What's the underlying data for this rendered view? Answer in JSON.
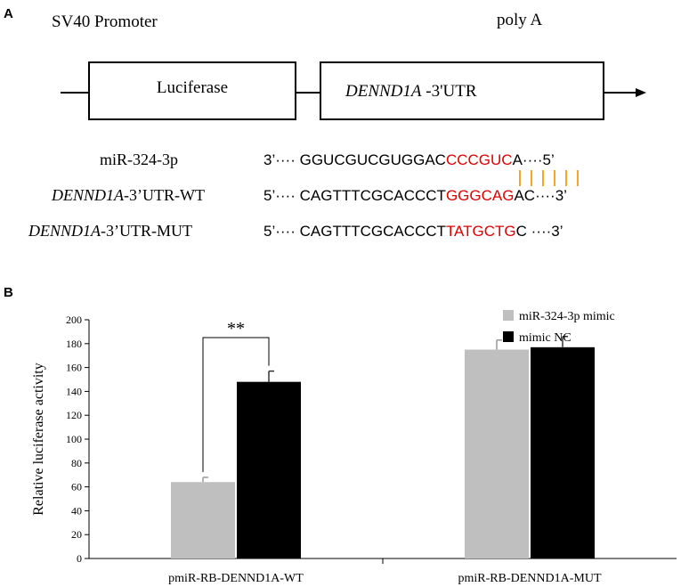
{
  "panel_a": {
    "label": "A",
    "promoter_label": "SV40 Promoter",
    "polya_label": "poly A",
    "box1_label": "Luciferase",
    "box2_label_italic": "DENND1A",
    "box2_label_rest": " -3'UTR",
    "rows": [
      {
        "name_italic": "",
        "name_rest": "miR-324-3p",
        "prefix": "3’···· ",
        "seq_black1": "GGUCGUCGUGGAC",
        "seq_red": "CCCGUC",
        "seq_black2": "A",
        "suffix": "····5’"
      },
      {
        "name_italic": "DENND1A",
        "name_rest": "-3’UTR-WT",
        "prefix": "5’···· ",
        "seq_black1": "CAGTTTCGCACCCT",
        "seq_red": "GGGCAG",
        "seq_black2": "AC",
        "suffix": "····3’"
      },
      {
        "name_italic": "DENND1A",
        "name_rest": "-3’UTR-MUT",
        "prefix": "5’···· ",
        "seq_black1": "CAGTTTCGCACCCT",
        "seq_red": "TATGCTG",
        "seq_black2": "C",
        "suffix": " ····3’"
      }
    ],
    "pairing_color": "#f5a623",
    "highlight_color": "#e00000"
  },
  "panel_b": {
    "label": "B",
    "significance": "**"
  },
  "chart_data": {
    "type": "bar",
    "title": "",
    "xlabel": "",
    "ylabel": "Relative luciferase activity",
    "ylim": [
      0,
      200
    ],
    "yticks": [
      0,
      20,
      40,
      60,
      80,
      100,
      120,
      140,
      160,
      180,
      200
    ],
    "categories": [
      "pmiR-RB-DENND1A-WT",
      "pmiR-RB-DENND1A-MUT"
    ],
    "series": [
      {
        "name": "miR-324-3p mimic",
        "values": [
          64,
          175
        ],
        "errors": [
          4,
          8
        ],
        "color": "#bfbfbf"
      },
      {
        "name": "mimic NC",
        "values": [
          148,
          177
        ],
        "errors": [
          9,
          9
        ],
        "color": "#000000"
      }
    ],
    "legend_position": "top-right",
    "grid": false
  }
}
